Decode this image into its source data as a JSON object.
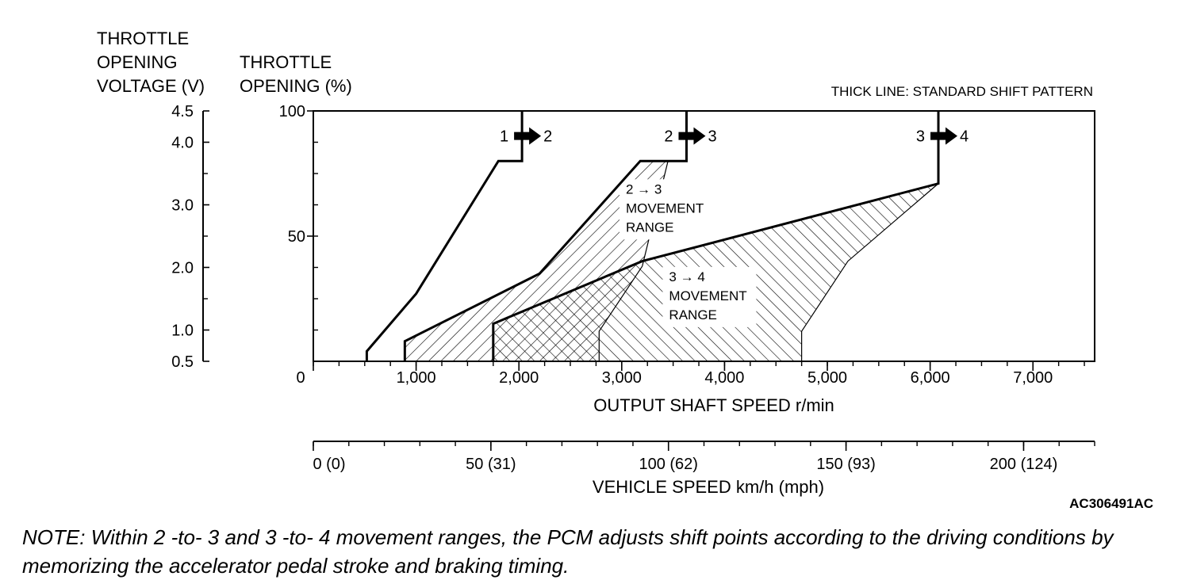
{
  "chart_data": {
    "type": "line",
    "y_title_voltage": [
      "THROTTLE",
      "OPENING",
      "VOLTAGE (V)"
    ],
    "y_title_percent": [
      "THROTTLE",
      "OPENING (%)"
    ],
    "legend_note": "THICK LINE: STANDARD SHIFT PATTERN",
    "xlabel": "OUTPUT SHAFT SPEED r/min",
    "xlabel2": "VEHICLE SPEED km/h (mph)",
    "figure_code": "AC306491AC",
    "xlim": [
      0,
      7600
    ],
    "ylim": [
      0,
      100
    ],
    "x_ticks": [
      {
        "v": 0,
        "label": "0"
      },
      {
        "v": 1000,
        "label": "1,000"
      },
      {
        "v": 2000,
        "label": "2,000"
      },
      {
        "v": 3000,
        "label": "3,000"
      },
      {
        "v": 4000,
        "label": "4,000"
      },
      {
        "v": 5000,
        "label": "5,000"
      },
      {
        "v": 6000,
        "label": "6,000"
      },
      {
        "v": 7000,
        "label": "7,000"
      }
    ],
    "x_minor_step": 250,
    "y_ticks_percent": [
      {
        "v": 0,
        "label": ""
      },
      {
        "v": 50,
        "label": "50"
      },
      {
        "v": 100,
        "label": "100"
      }
    ],
    "y_minor_step_percent": 12.5,
    "voltage_scale": {
      "min": 0.5,
      "max": 4.5
    },
    "y_ticks_voltage": [
      {
        "v": 0.5,
        "label": "0.5"
      },
      {
        "v": 1.0,
        "label": "1.0"
      },
      {
        "v": 2.0,
        "label": "2.0"
      },
      {
        "v": 3.0,
        "label": "3.0"
      },
      {
        "v": 4.0,
        "label": "4.0"
      },
      {
        "v": 4.5,
        "label": "4.5"
      }
    ],
    "y_minor_voltage": [
      1.5,
      2.5,
      3.5
    ],
    "speed_scale": {
      "max_kmh": 220
    },
    "speed_ticks": [
      {
        "v": 0,
        "label": "0 (0)"
      },
      {
        "v": 50,
        "label": "50 (31)"
      },
      {
        "v": 100,
        "label": "100 (62)"
      },
      {
        "v": 150,
        "label": "150 (93)"
      },
      {
        "v": 200,
        "label": "200 (124)"
      }
    ],
    "speed_minor_step": 10,
    "series": [
      {
        "name": "1 → 2",
        "from": "1",
        "to": "2",
        "x": [
          520,
          520,
          1000,
          1800,
          2030,
          2030
        ],
        "y": [
          0,
          4,
          27,
          80,
          80,
          100
        ]
      },
      {
        "name": "2 → 3",
        "from": "2",
        "to": "3",
        "x": [
          890,
          890,
          2200,
          3180,
          3630,
          3630
        ],
        "y": [
          0,
          8,
          35,
          80,
          80,
          100
        ]
      },
      {
        "name": "3 → 4",
        "from": "3",
        "to": "4",
        "x": [
          1750,
          1750,
          3200,
          6080,
          6080
        ],
        "y": [
          0,
          15,
          40,
          71,
          100
        ]
      }
    ],
    "movement_ranges": [
      {
        "label": [
          "2 → 3",
          "MOVEMENT",
          "RANGE"
        ],
        "x": [
          890,
          890,
          2200,
          3180,
          3450,
          3200,
          2780,
          2780
        ],
        "y": [
          0,
          8,
          35,
          80,
          80,
          38,
          12,
          0
        ]
      },
      {
        "label": [
          "3 → 4",
          "MOVEMENT",
          "RANGE"
        ],
        "x": [
          1750,
          1750,
          3200,
          6080,
          5200,
          4750,
          4750
        ],
        "y": [
          0,
          15,
          40,
          71,
          40,
          12,
          0
        ]
      }
    ]
  },
  "note": "NOTE: Within 2 -to- 3 and 3 -to- 4 movement ranges, the PCM adjusts shift points according to the driving conditions by memorizing the accelerator pedal stroke and braking timing."
}
